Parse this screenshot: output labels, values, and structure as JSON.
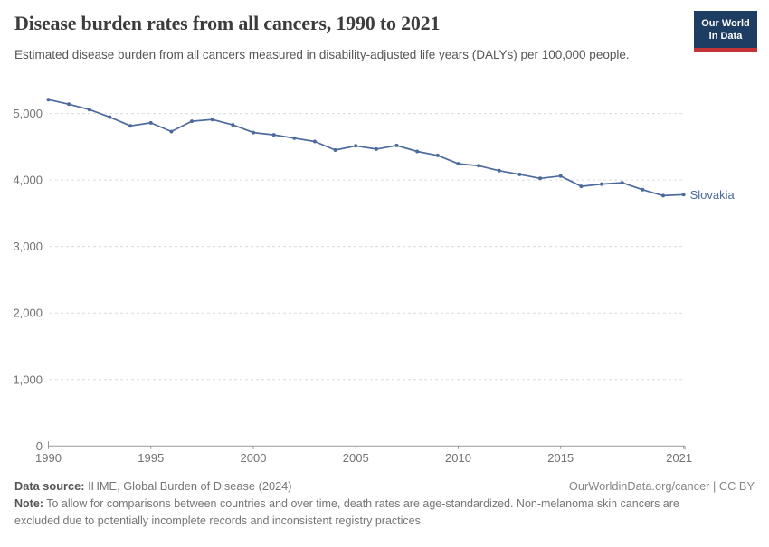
{
  "header": {
    "logo": {
      "line1": "Our World",
      "line2": "in Data",
      "bg_color": "#1d3d63",
      "accent_color": "#c23335"
    }
  },
  "chart_data": {
    "type": "line",
    "title": "Disease burden rates from all cancers, 1990 to 2021",
    "subtitle": "Estimated disease burden from all cancers measured in disability-adjusted life years (DALYs) per 100,000 people.",
    "x": [
      1990,
      1991,
      1992,
      1993,
      1994,
      1995,
      1996,
      1997,
      1998,
      1999,
      2000,
      2001,
      2002,
      2003,
      2004,
      2005,
      2006,
      2007,
      2008,
      2009,
      2010,
      2011,
      2012,
      2013,
      2014,
      2015,
      2016,
      2017,
      2018,
      2019,
      2020,
      2021
    ],
    "series": [
      {
        "name": "Slovakia",
        "color": "#4c6a9c",
        "values": [
          5210,
          5140,
          5060,
          4945,
          4815,
          4860,
          4730,
          4885,
          4910,
          4830,
          4715,
          4680,
          4630,
          4580,
          4450,
          4515,
          4465,
          4520,
          4430,
          4370,
          4245,
          4215,
          4140,
          4085,
          4025,
          4060,
          3905,
          3940,
          3960,
          3855,
          3765,
          3780
        ]
      }
    ],
    "xlabel": "",
    "ylabel": "",
    "ylim": [
      0,
      5000
    ],
    "yticks": [
      0,
      1000,
      2000,
      3000,
      4000,
      5000
    ],
    "xticks": [
      1990,
      1995,
      2000,
      2005,
      2010,
      2015,
      2021
    ],
    "grid": "horizontal-dashed",
    "grid_color": "#dcdcdc",
    "axis_color": "#9a9a9a",
    "tick_label_color": "#737373",
    "legend_position": "end-of-line"
  },
  "footer": {
    "datasource_label": "Data source:",
    "datasource_value": " IHME, Global Burden of Disease (2024)",
    "rights": "OurWorldinData.org/cancer | CC BY",
    "note_label": "Note:",
    "note_value": " To allow for comparisons between countries and over time, death rates are age-standardized. Non-melanoma skin cancers are excluded due to potentially incomplete records and inconsistent registry practices."
  }
}
